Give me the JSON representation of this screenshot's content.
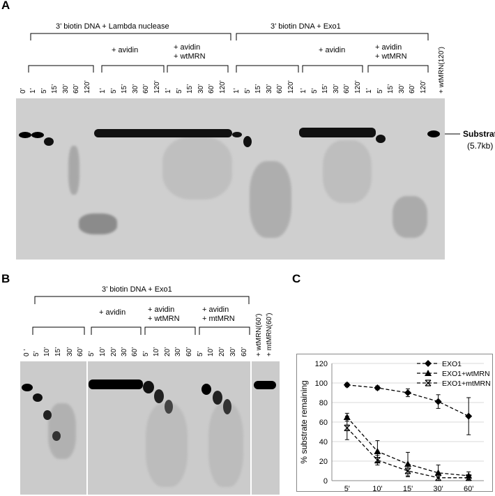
{
  "panel_a": {
    "label": "A",
    "group_left": "3’   biotin  DNA + Lambda  nuclease",
    "group_right": "3’   biotin  DNA + Exo1",
    "avidin_1": "+ avidin",
    "avidin_mrn_1": "+ avidin\n+ wtMRN",
    "avidin_2": "+ avidin",
    "avidin_mrn_2": "+ avidin\n+ wtMRN",
    "lanes": [
      "0’",
      "1’",
      "5’",
      "15’",
      "30’",
      "60’",
      "120’",
      "1’",
      "5’",
      "15’",
      "30’",
      "60’",
      "120’",
      "1’",
      "5’",
      "15’",
      "30’",
      "60’",
      "120’",
      "1’",
      "5’",
      "15’",
      "30’",
      "60’",
      "120’",
      "1’",
      "5’",
      "15’",
      "30’",
      "60’",
      "120’",
      "1’",
      "5’",
      "15’",
      "30’",
      "60’",
      "120’",
      "+ wtMRN(120’)"
    ],
    "substrate_label": "Substrate",
    "substrate_size": "(5.7kb)"
  },
  "panel_b": {
    "label": "B",
    "group": "3’   biotin  DNA + Exo1",
    "avidin": "+ avidin",
    "avidin_wt": "+ avidin\n+ wtMRN",
    "avidin_mt": "+ avidin\n+ mtMRN",
    "lanes": [
      "0 ’",
      "5’",
      "10’",
      "15’",
      "30’",
      "60’",
      "5’",
      "10’",
      "20’",
      "30’",
      "60’",
      "5’",
      "10’",
      "20’",
      "30’",
      "60’",
      "5’",
      "10’",
      "20’",
      "30’",
      "60’",
      "+ wtMRN(60’)",
      "+ mtMRN(60’)"
    ]
  },
  "panel_c": {
    "label": "C"
  },
  "chart_data": {
    "type": "line",
    "categories": [
      "5'",
      "10'",
      "15'",
      "30'",
      "60'"
    ],
    "ylabel": "% substrate remaining",
    "xlabel": "",
    "ylim": [
      0,
      120
    ],
    "yticks": [
      "0",
      "20",
      "40",
      "60",
      "80",
      "100",
      "120"
    ],
    "grid": true,
    "legend": "top-right",
    "series": [
      {
        "name": "EXO1",
        "marker": "diamond",
        "values": [
          98,
          95,
          90,
          81,
          66
        ],
        "errors": [
          2,
          2,
          4,
          7,
          19
        ]
      },
      {
        "name": "EXO1+wtMRN",
        "marker": "triangle",
        "values": [
          65,
          30,
          17,
          8,
          5
        ],
        "errors": [
          4,
          11,
          12,
          8,
          4
        ]
      },
      {
        "name": "EXO1+mtMRN",
        "marker": "x",
        "values": [
          54,
          21,
          10,
          3,
          3
        ],
        "errors": [
          12,
          5,
          6,
          3,
          3
        ]
      }
    ]
  }
}
